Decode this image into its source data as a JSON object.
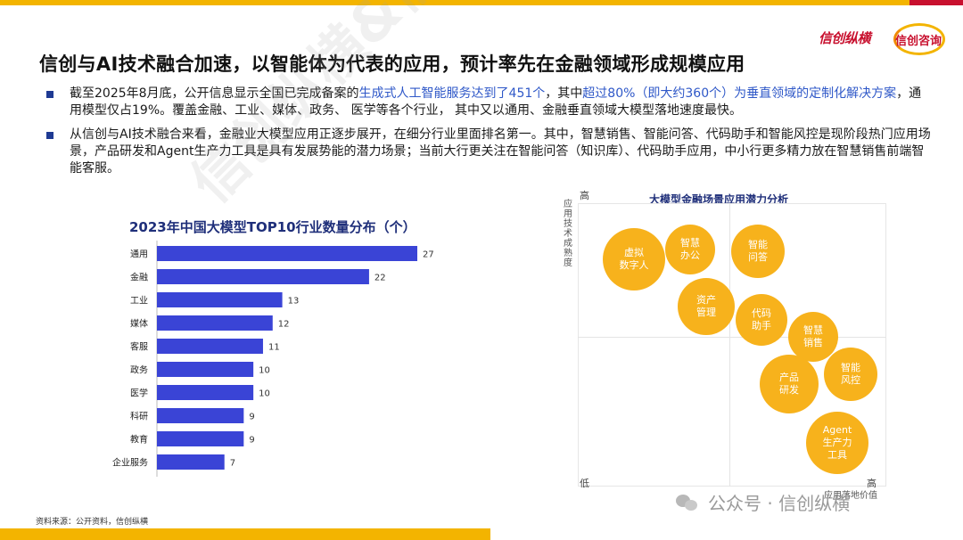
{
  "header": {
    "logo_left": "信创纵横",
    "logo_right": "信创咨询",
    "title": "信创与AI技术融合加速，以智能体为代表的应用，预计率先在金融领域形成规模应用"
  },
  "bullets": [
    {
      "p1": "截至2025年8月底，公开信息显示全国已完成备案的",
      "hl1": "生成式人工智能服务达到了451个",
      "p2": "，其中",
      "hl2": "超过80%（即大约360个）为垂直领域的定制化解决方案",
      "p3": "，通用模型仅占19%。覆盖金融、工业、媒体、政务、 医学等各个行业， 其中又以通用、金融垂直领域大模型落地速度最快。"
    },
    {
      "text": "从信创与AI技术融合来看，金融业大模型应用正逐步展开，在细分行业里面排名第一。其中，智慧销售、智能问答、代码助手和智能风控是现阶段热门应用场景，产品研发和Agent生产力工具是具有发展势能的潜力场景；当前大行更关注在智能问答（知识库）、代码助手应用，中小行更多精力放在智慧销售前端智能客服。"
    }
  ],
  "chart_data": [
    {
      "type": "bar",
      "orientation": "horizontal",
      "title": "2023年中国大模型TOP10行业数量分布（个）",
      "categories": [
        "通用",
        "金融",
        "工业",
        "媒体",
        "客服",
        "政务",
        "医学",
        "科研",
        "教育",
        "企业服务"
      ],
      "values": [
        27,
        22,
        13,
        12,
        11,
        10,
        10,
        9,
        9,
        7
      ],
      "bar_color": "#3a44d6",
      "xlim": [
        0,
        27
      ]
    },
    {
      "type": "scatter",
      "title": "大模型金融场景应用潜力分析",
      "xlabel": "应用落地价值",
      "ylabel": "应用技术成熟度",
      "x_low_label": "低",
      "x_high_label": "高",
      "y_high_label": "高",
      "bubble_color": "#f7b21c",
      "points": [
        {
          "label": "虚拟\n数字人"
        },
        {
          "label": "智慧\n办公"
        },
        {
          "label": "智能\n问答"
        },
        {
          "label": "资产\n管理"
        },
        {
          "label": "代码\n助手"
        },
        {
          "label": "智慧\n销售"
        },
        {
          "label": "产品\n研发"
        },
        {
          "label": "智能\n风控"
        },
        {
          "label": "Agent\n生产力\n工具"
        }
      ]
    }
  ],
  "footer": {
    "source": "资料来源：公开资料，信创纵横",
    "wechat": "公众号 · 信创纵横",
    "watermark": "信创纵横&信创咨询"
  }
}
